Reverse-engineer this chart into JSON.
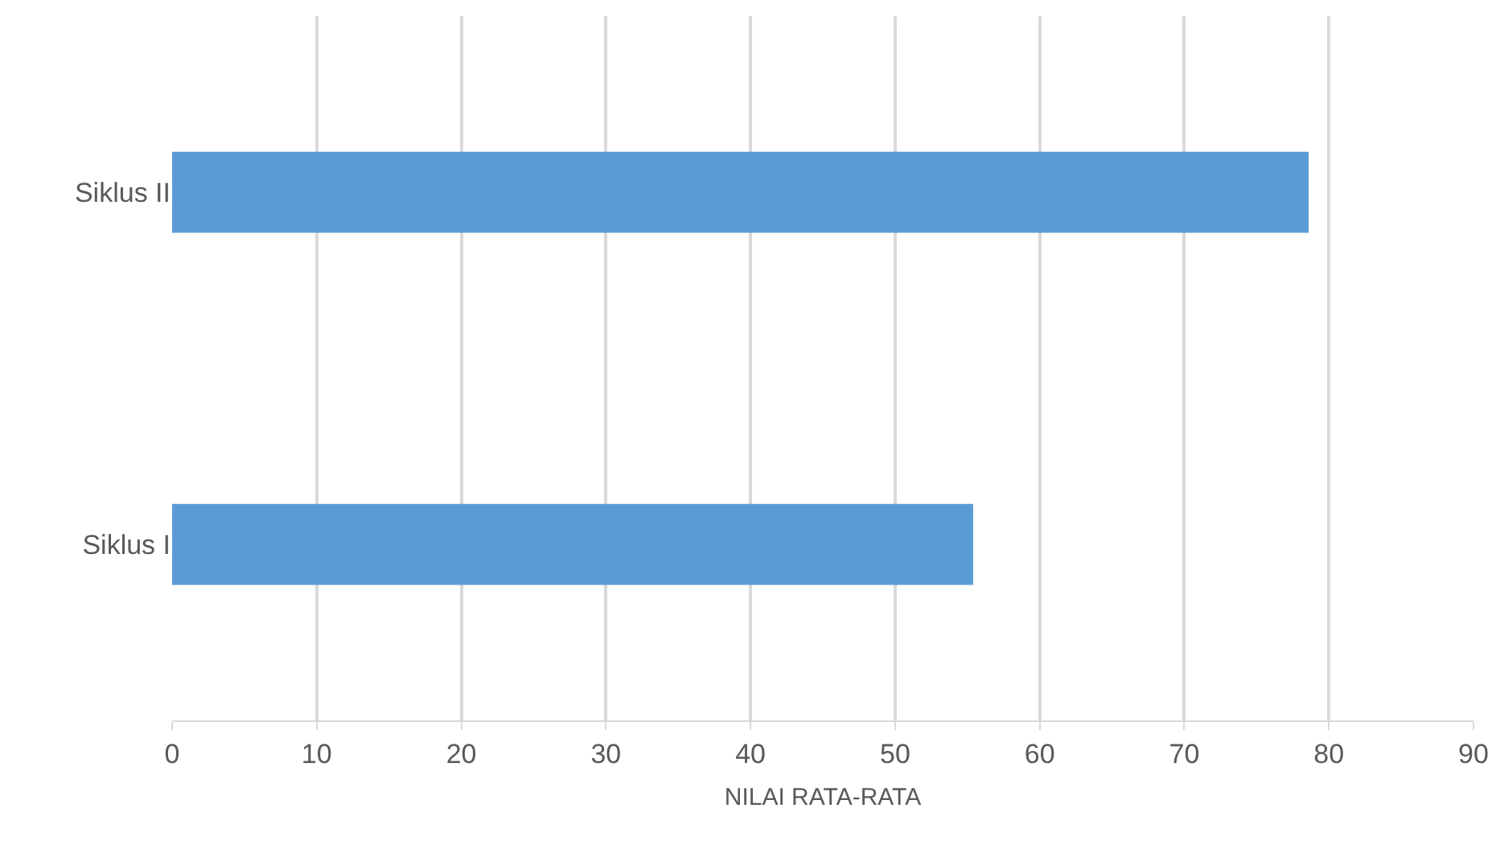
{
  "chart_data": {
    "type": "bar",
    "orientation": "horizontal",
    "xlabel": "NILAI RATA-RATA",
    "categories": [
      "Siklus II",
      "Siklus I"
    ],
    "values": [
      78.6,
      55.4
    ],
    "color": "#5b9bd5",
    "xlim": [
      0,
      90
    ],
    "xticks": [
      0,
      10,
      20,
      30,
      40,
      50,
      60,
      70,
      80,
      90
    ],
    "grid": "x"
  }
}
